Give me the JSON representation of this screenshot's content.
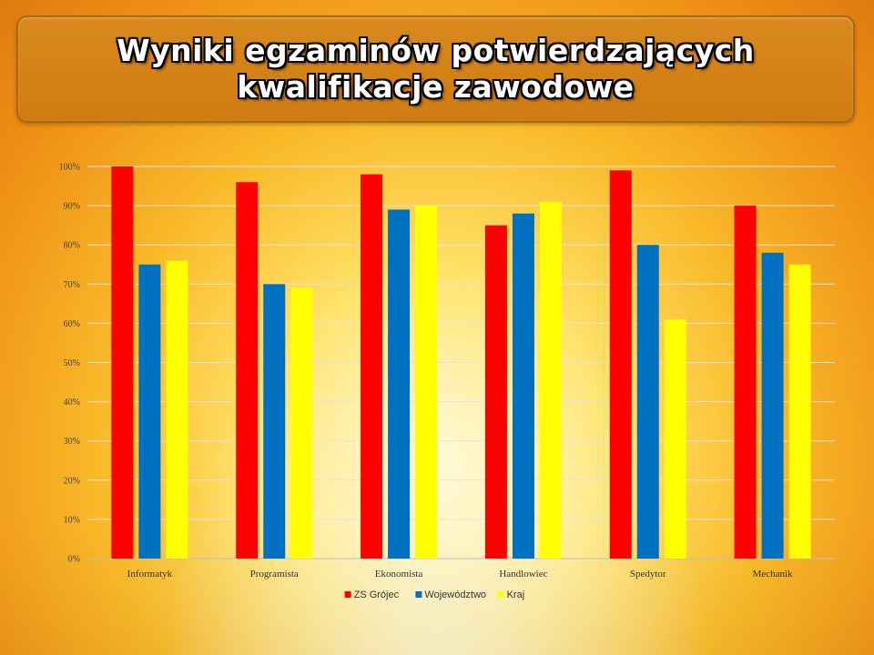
{
  "slide": {
    "title": "Wyniki egzaminów potwierdzających\nkwalifikacje zawodowe"
  },
  "chart_data": {
    "type": "bar",
    "categories": [
      "Informatyk",
      "Programista",
      "Ekonomista",
      "Handlowiec",
      "Spedytor",
      "Mechanik"
    ],
    "series": [
      {
        "name": "ZS Grójec",
        "color": "#ff0000",
        "values": [
          100,
          96,
          98,
          85,
          99,
          90
        ]
      },
      {
        "name": "Województwo",
        "color": "#0070c0",
        "values": [
          75,
          70,
          89,
          88,
          80,
          78
        ]
      },
      {
        "name": "Kraj",
        "color": "#ffff00",
        "values": [
          76,
          69,
          90,
          91,
          61,
          75
        ]
      }
    ],
    "ylim": [
      0,
      100
    ],
    "yticks": [
      "0%",
      "10%",
      "20%",
      "30%",
      "40%",
      "50%",
      "60%",
      "70%",
      "80%",
      "90%",
      "100%"
    ],
    "grid": true,
    "legend": "bottom"
  }
}
